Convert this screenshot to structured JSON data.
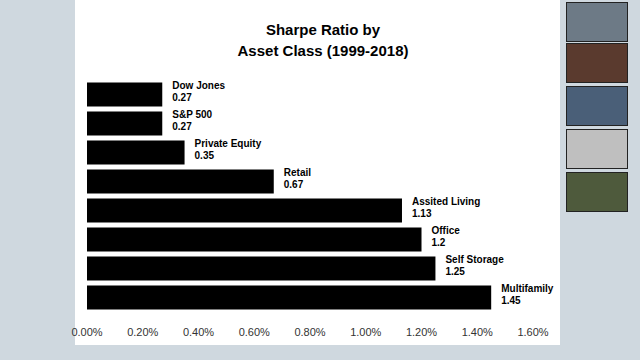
{
  "chart_data": {
    "type": "bar",
    "title": "Sharpe Ratio by\nAsset Class (1999-2018)",
    "orientation": "horizontal",
    "categories": [
      "Dow Jones",
      "S&P 500",
      "Private Equity",
      "Retail",
      "Assited Living",
      "Office",
      "Self Storage",
      "Multifamily"
    ],
    "values": [
      0.27,
      0.27,
      0.35,
      0.67,
      1.13,
      1.2,
      1.25,
      1.45
    ],
    "color": "#000000",
    "xlim": [
      0,
      1.6
    ],
    "xticks": [
      {
        "value": 0,
        "label": "0.00%"
      },
      {
        "value": 0.2,
        "label": "0.20%"
      },
      {
        "value": 0.4,
        "label": "0.40%"
      },
      {
        "value": 0.6,
        "label": "0.60%"
      },
      {
        "value": 0.8,
        "label": "0.80%"
      },
      {
        "value": 1.0,
        "label": "1.00%"
      },
      {
        "value": 1.2,
        "label": "1.20%"
      },
      {
        "value": 1.4,
        "label": "1.40%"
      },
      {
        "value": 1.6,
        "label": "1.60%"
      }
    ],
    "data_labels": true,
    "tick_labels": "x",
    "grid": false
  }
}
